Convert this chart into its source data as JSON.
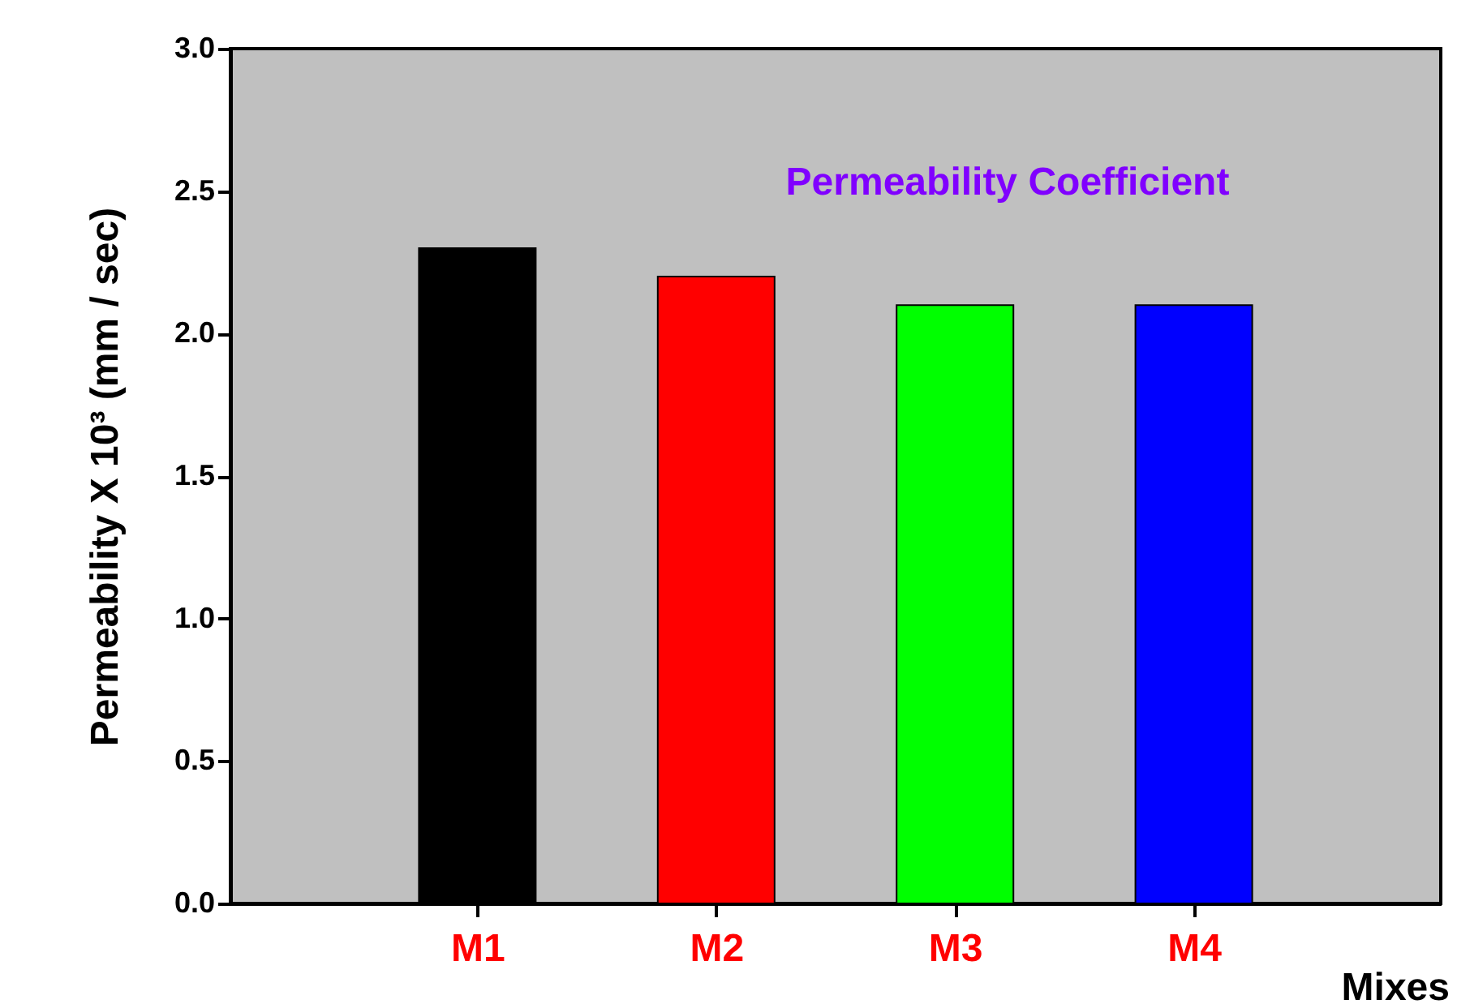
{
  "chart_data": {
    "type": "bar",
    "title": "Permeability  Coefficient",
    "xlabel": "Mixes",
    "ylabel": "Permeability  X 10³   (mm / sec)",
    "categories": [
      "M1",
      "M2",
      "M3",
      "M4"
    ],
    "values": [
      2.3,
      2.2,
      2.1,
      2.1
    ],
    "colors": [
      "#000000",
      "#ff0000",
      "#00ff00",
      "#0000ff"
    ],
    "ylim": [
      0,
      3
    ],
    "yticks": [
      {
        "value": 0,
        "label": "0.0"
      },
      0.5,
      {
        "value": 1,
        "label": "1.0"
      },
      1.5,
      {
        "value": 2,
        "label": "2.0"
      },
      2.5,
      {
        "value": 3,
        "label": "3.0"
      }
    ],
    "grid": false
  }
}
